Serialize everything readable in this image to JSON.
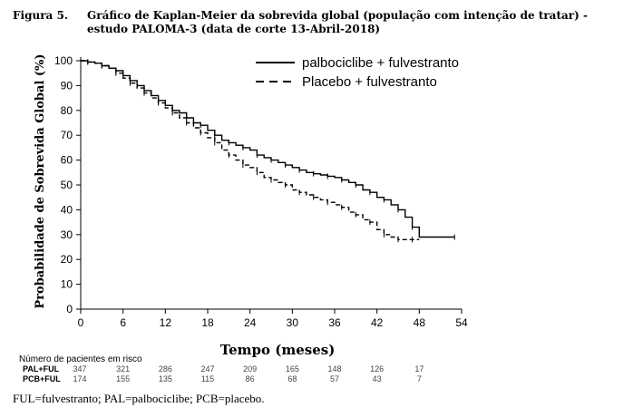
{
  "caption": {
    "label": "Figura 5.",
    "title": "Gráfico de Kaplan-Meier da sobrevida global (população com intenção de tratar) - estudo PALOMA-3 (data de corte 13-Abril-2018)"
  },
  "footnote": "FUL=fulvestranto; PAL=palbociclibe; PCB=placebo.",
  "chart_data": {
    "type": "line",
    "title": "",
    "xlabel": "Tempo (meses)",
    "ylabel": "Probabilidade de Sobrevida Global (%)",
    "xlim": [
      0,
      54
    ],
    "ylim": [
      0,
      100
    ],
    "xticks": [
      0,
      6,
      12,
      18,
      24,
      30,
      36,
      42,
      48,
      54
    ],
    "yticks": [
      0,
      10,
      20,
      30,
      40,
      50,
      60,
      70,
      80,
      90,
      100
    ],
    "grid": false,
    "legend_position": "top-right",
    "series": [
      {
        "name": "palbociclibe + fulvestranto",
        "style": "solid",
        "color": "#000000",
        "x": [
          0,
          1,
          2,
          3,
          4,
          5,
          6,
          7,
          8,
          9,
          10,
          11,
          12,
          13,
          14,
          15,
          16,
          17,
          18,
          19,
          20,
          21,
          22,
          23,
          24,
          25,
          26,
          27,
          28,
          29,
          30,
          31,
          32,
          33,
          34,
          35,
          36,
          37,
          38,
          39,
          40,
          41,
          42,
          43,
          44,
          45,
          46,
          47,
          48,
          53
        ],
        "y": [
          100,
          99.5,
          99,
          98,
          97,
          96,
          94,
          92,
          90,
          88,
          86,
          84,
          82,
          80,
          79,
          77,
          75,
          74,
          72,
          70,
          68,
          67,
          66,
          65,
          64,
          62,
          61,
          60,
          59,
          58,
          57,
          56,
          55,
          54.5,
          54,
          53.5,
          53,
          52,
          51,
          50,
          48,
          47,
          45,
          44,
          42,
          40,
          37,
          33,
          29,
          29
        ]
      },
      {
        "name": "Placebo + fulvestranto",
        "style": "dashed",
        "color": "#000000",
        "x": [
          0,
          1,
          2,
          3,
          4,
          5,
          6,
          7,
          8,
          9,
          10,
          11,
          12,
          13,
          14,
          15,
          16,
          17,
          18,
          19,
          20,
          21,
          22,
          23,
          24,
          25,
          26,
          27,
          28,
          29,
          30,
          31,
          32,
          33,
          34,
          35,
          36,
          37,
          38,
          39,
          40,
          41,
          42,
          43,
          44,
          45,
          46,
          47,
          48
        ],
        "y": [
          100,
          99.5,
          99,
          98,
          97,
          95,
          93,
          91,
          89,
          87,
          85,
          83,
          81,
          79,
          77,
          75,
          73,
          71,
          69,
          67,
          64,
          62,
          60,
          58,
          57,
          55,
          53,
          52,
          51,
          50,
          48,
          47,
          46,
          45,
          44,
          43,
          42,
          41,
          39,
          38,
          36,
          35,
          32,
          30,
          29,
          28,
          28,
          28,
          28
        ]
      }
    ],
    "risk_table": {
      "title": "Número de pacientes em risco",
      "times": [
        0,
        6,
        12,
        18,
        24,
        30,
        36,
        42,
        48
      ],
      "rows": [
        {
          "label": "PAL+FUL",
          "counts": [
            "347",
            "321",
            "286",
            "247",
            "209",
            "165",
            "148",
            "126",
            "17"
          ]
        },
        {
          "label": "PCB+FUL",
          "counts": [
            "174",
            "155",
            "135",
            "115",
            "86",
            "68",
            "57",
            "43",
            "7"
          ]
        }
      ]
    }
  }
}
